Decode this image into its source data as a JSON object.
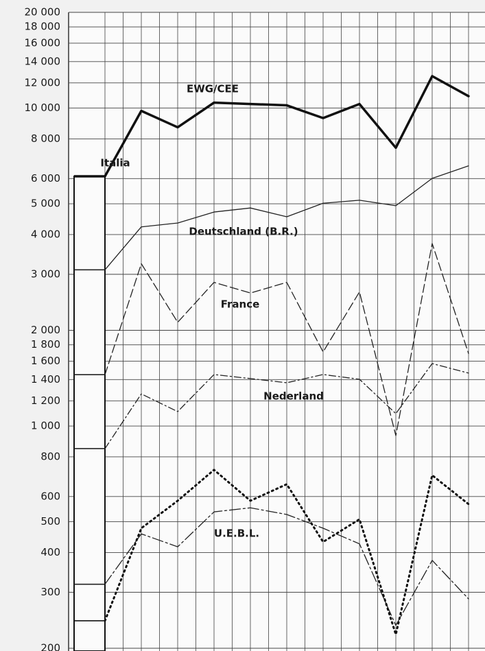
{
  "chart_data": {
    "type": "line",
    "log_scale": true,
    "grid": true,
    "ylim": [
      200,
      20000
    ],
    "yticks": [
      {
        "value": 20000,
        "label": "20 000"
      },
      {
        "value": 18000,
        "label": "18 000"
      },
      {
        "value": 16000,
        "label": "16 000"
      },
      {
        "value": 14000,
        "label": "14 000"
      },
      {
        "value": 12000,
        "label": "12 000"
      },
      {
        "value": 10000,
        "label": "10 000"
      },
      {
        "value": 8000,
        "label": "8 000"
      },
      {
        "value": 6000,
        "label": "6 000"
      },
      {
        "value": 5000,
        "label": "5 000"
      },
      {
        "value": 4000,
        "label": "4 000"
      },
      {
        "value": 3000,
        "label": "3 000"
      },
      {
        "value": 2000,
        "label": "2 000"
      },
      {
        "value": 1800,
        "label": "1 800"
      },
      {
        "value": 1600,
        "label": "1 600"
      },
      {
        "value": 1400,
        "label": "1 400"
      },
      {
        "value": 1200,
        "label": "1 200"
      },
      {
        "value": 1000,
        "label": "1 000"
      },
      800,
      600,
      500,
      400,
      300,
      200
    ],
    "series": [
      {
        "name": "EWG/CEE",
        "color": "#111111",
        "dash": "solid-thick",
        "values": [
          6100,
          9800,
          8700,
          10400,
          10300,
          10200,
          9300,
          10300,
          7500,
          12600,
          10900
        ]
      },
      {
        "name": "Deutschland (B.R.)",
        "color": "#222222",
        "dash": "solid",
        "values": [
          3100,
          4230,
          4350,
          4710,
          4850,
          4550,
          5020,
          5130,
          4930,
          6010,
          6580
        ]
      },
      {
        "name": "France",
        "color": "#222222",
        "dash": "dashed",
        "values": [
          1450,
          3240,
          2120,
          2830,
          2620,
          2830,
          1710,
          2640,
          933,
          3750,
          1690
        ]
      },
      {
        "name": "Nederland",
        "color": "#222222",
        "dash": "dashdot",
        "values": [
          849,
          1262,
          1110,
          1452,
          1410,
          1368,
          1452,
          1403,
          1094,
          1572,
          1467
        ]
      },
      {
        "name": "U.E.B.L.",
        "color": "#222222",
        "dash": "longdashdot",
        "values": [
          318,
          458,
          417,
          537,
          553,
          527,
          477,
          426,
          236,
          378,
          286
        ]
      },
      {
        "name": "Italia",
        "color": "#111111",
        "dash": "dotted",
        "values": [
          244,
          477,
          582,
          728,
          582,
          656,
          432,
          509,
          221,
          700,
          568
        ]
      }
    ]
  }
}
